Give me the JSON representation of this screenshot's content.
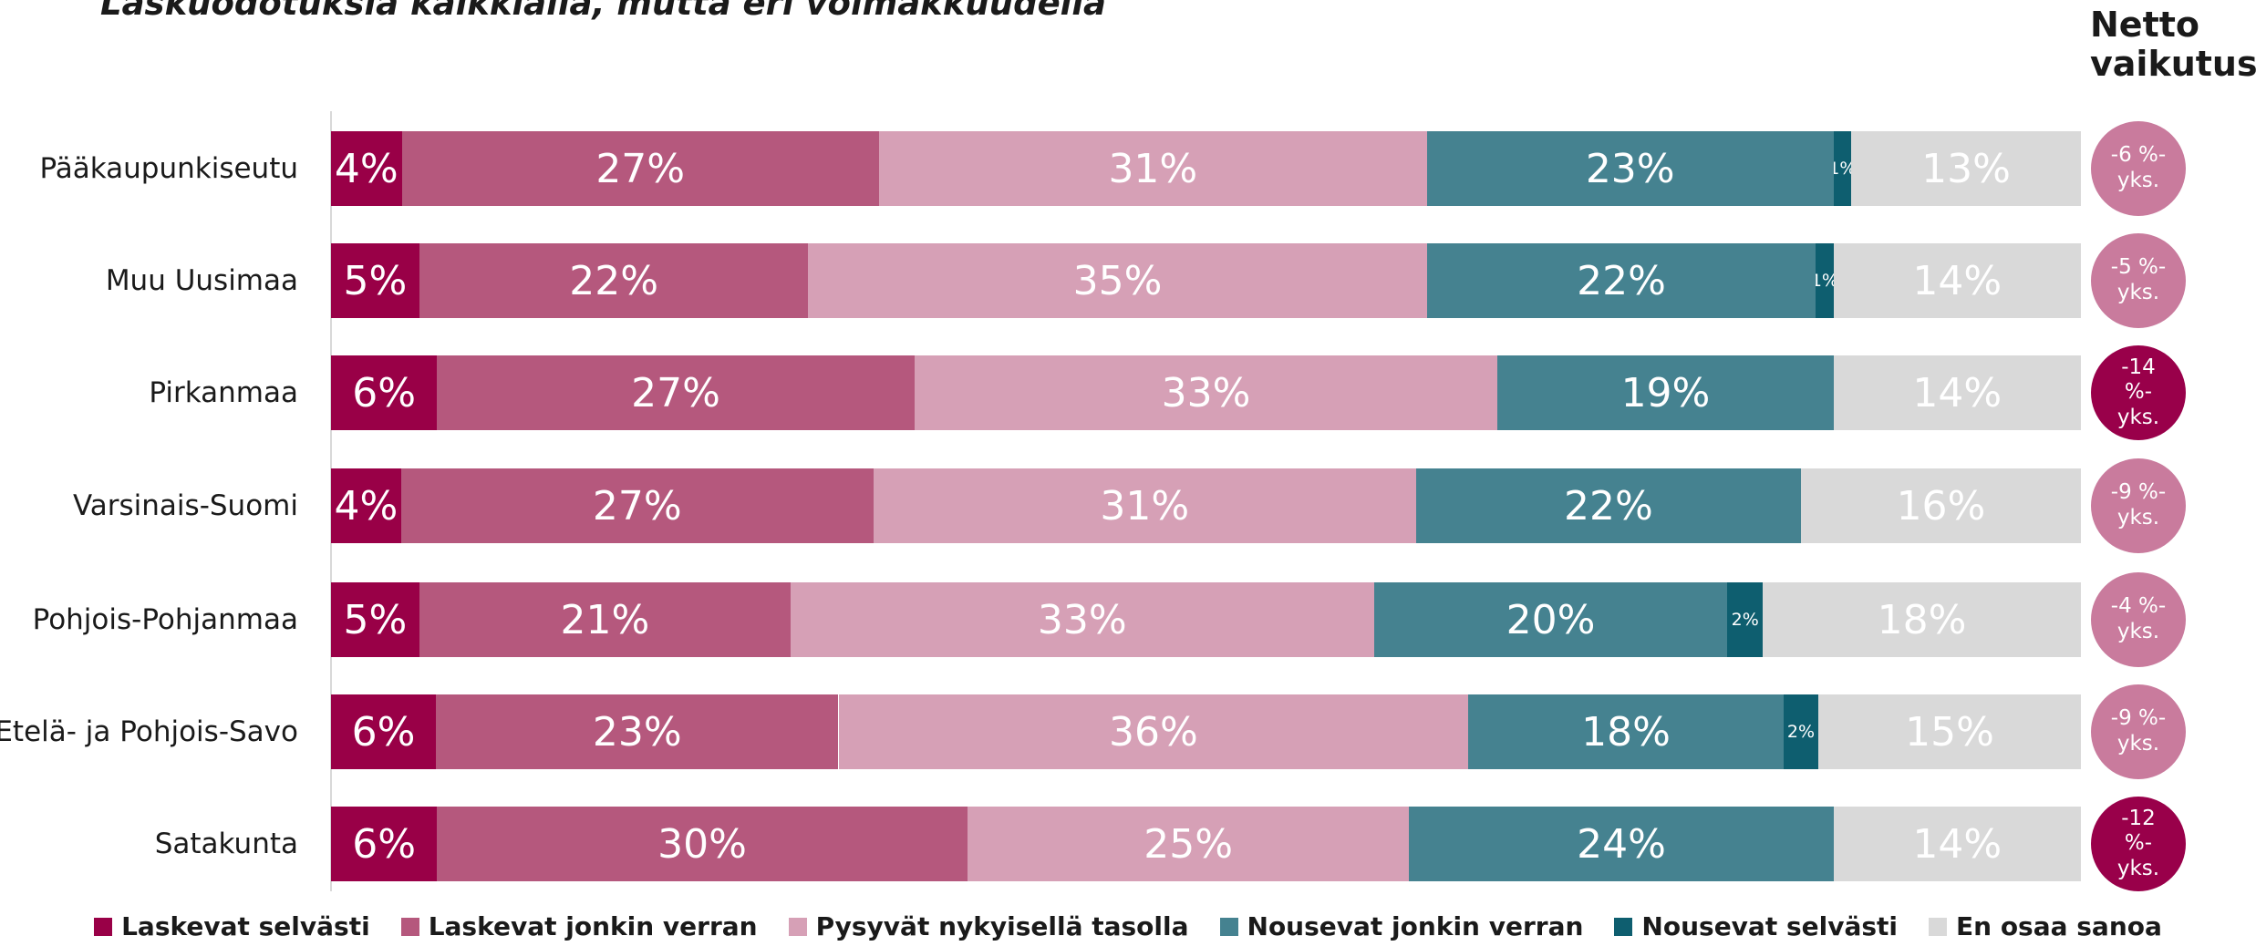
{
  "chart_data": {
    "type": "stacked_bar_horizontal",
    "title": "Laskuodotuksia kaikkialla, mutta eri voimakkuudella",
    "categories": [
      "Pääkaupunkiseutu",
      "Muu Uusimaa",
      "Pirkanmaa",
      "Varsinais-Suomi",
      "Pohjois-Pohjanmaa",
      "Etelä- ja Pohjois-Savo",
      "Satakunta"
    ],
    "series": [
      {
        "name": "Laskevat selvästi",
        "color": "#990047",
        "values": [
          4,
          5,
          6,
          4,
          5,
          6,
          6
        ],
        "value_labels": [
          "4%",
          "5%",
          "6%",
          "4%",
          "5%",
          "6%",
          "6%"
        ]
      },
      {
        "name": "Laskevat jonkin verran",
        "color": "#b5587d",
        "values": [
          27,
          22,
          27,
          27,
          21,
          23,
          30
        ],
        "value_labels": [
          "27%",
          "22%",
          "27%",
          "27%",
          "21%",
          "23%",
          "30%"
        ]
      },
      {
        "name": "Pysyvät nykyisellä tasolla",
        "color": "#d6a0b6",
        "values": [
          31,
          35,
          33,
          31,
          33,
          36,
          25
        ],
        "value_labels": [
          "31%",
          "35%",
          "33%",
          "31%",
          "33%",
          "36%",
          "25%"
        ]
      },
      {
        "name": "Nousevat jonkin verran",
        "color": "#458290",
        "values": [
          23,
          22,
          19,
          22,
          20,
          18,
          24
        ],
        "value_labels": [
          "23%",
          "22%",
          "19%",
          "22%",
          "20%",
          "18%",
          "24%"
        ]
      },
      {
        "name": "Nousevat selvästi",
        "color": "#0e5e6f",
        "values": [
          1,
          1,
          0,
          0,
          2,
          2,
          0
        ],
        "value_labels": [
          "1%",
          "1%",
          null,
          null,
          "2%",
          "2%",
          null
        ]
      },
      {
        "name": "En osaa sanoa",
        "color": "#d9d9d9",
        "values": [
          13,
          14,
          14,
          16,
          18,
          15,
          14
        ],
        "value_labels": [
          "13%",
          "14%",
          "14%",
          "16%",
          "18%",
          "15%",
          "14%"
        ]
      }
    ],
    "net": {
      "title": "Netto vaikutus",
      "values": [
        -6,
        -5,
        -14,
        -9,
        -4,
        -9,
        -12
      ],
      "value_labels": [
        "-6 %-yks.",
        "-5 %-yks.",
        "-14 %-yks.",
        "-9 %-yks.",
        "-4 %-yks.",
        "-9 %-yks.",
        "-12 %-yks."
      ],
      "colors": [
        "#c97b9d",
        "#c97b9d",
        "#99004a",
        "#c97b9d",
        "#c97b9d",
        "#c97b9d",
        "#99004a"
      ]
    }
  }
}
